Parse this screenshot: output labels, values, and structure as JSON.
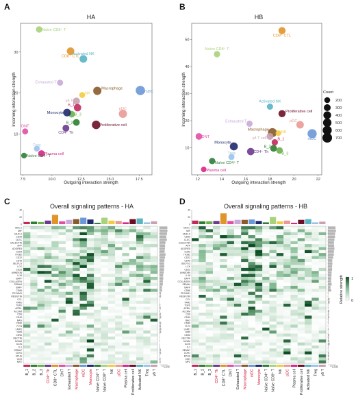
{
  "panels": {
    "A": "A",
    "B": "B",
    "C": "C",
    "D": "D"
  },
  "scatter_axes": {
    "xlabel": "Outgoing interaction strength",
    "ylabel": "Incoming interaction strength"
  },
  "size_legend": {
    "title": "Count",
    "labels": [
      "200",
      "300",
      "400",
      "500",
      "600",
      "700"
    ]
  },
  "heatmap_legend": {
    "title": "Relative strength",
    "ticks": [
      "1",
      "0"
    ]
  },
  "bar_ticks": {
    "C": [
      "40",
      "20",
      "0"
    ],
    "D": [
      "40",
      "20",
      "0"
    ]
  },
  "side_ticks": [
    "0",
    "10",
    "20",
    "30"
  ],
  "signaling_rows": [
    "MHC-I",
    "MIF",
    "MHC-II",
    "CD99",
    "CLEC",
    "GALECTIN",
    "APP",
    "ADGRE5",
    "ICAM",
    "ITGB2",
    "CD22",
    "CD45",
    "SELPLG",
    "LCK",
    "CD23",
    "ANNEXIN",
    "IL16",
    "BAFF",
    "COLLAGEN",
    "SEMA4",
    "BAFF",
    "CD86",
    "PECAM1",
    "RESISTIN",
    "CCL",
    "PARs",
    "TGFb",
    "APRIL",
    "ALCAM",
    "CD6",
    "CD40",
    "BAG",
    "CD80",
    "FLT3",
    "LAIR1",
    "GRN",
    "CD96",
    "NECTIN",
    "NCAM",
    "ICOS",
    "IL1",
    "SEMA7",
    "CDH1",
    "EPHA",
    "CDH",
    "MPZ"
  ],
  "chart_data": [
    {
      "type": "scatter",
      "title": "HA",
      "xlabel": "Outgoing interaction strength",
      "ylabel": "Incoming interaction strength",
      "xlim": [
        7.3,
        18.6
      ],
      "ylim": [
        0,
        37
      ],
      "xticks": [
        "7.5",
        "10.0",
        "12.5",
        "15.0",
        "17.5"
      ],
      "yticks": [
        "10",
        "20",
        "30"
      ],
      "points": [
        {
          "label": "Naïve CD8⁺ T",
          "x": 8.9,
          "y": 35.5,
          "count": 250,
          "color": "#a8d27b"
        },
        {
          "label": "CD8⁺ CTL",
          "x": 11.6,
          "y": 30.2,
          "count": 380,
          "color": "#e0952a"
        },
        {
          "label": "Activated NK",
          "x": 12.7,
          "y": 28.3,
          "count": 390,
          "color": "#5ab4c4"
        },
        {
          "label": "Exhausted T",
          "x": 10.7,
          "y": 22.5,
          "count": 210,
          "color": "#c9a9d9"
        },
        {
          "label": "NK",
          "x": 12.6,
          "y": 19.5,
          "count": 200,
          "color": "#f1cc43"
        },
        {
          "label": "γδ T",
          "x": 12.1,
          "y": 18.0,
          "count": 330,
          "color": "#c9a1b0"
        },
        {
          "label": "Macrophage",
          "x": 13.9,
          "y": 20.5,
          "count": 480,
          "color": "#8a5a2a"
        },
        {
          "label": "mDC",
          "x": 17.6,
          "y": 20.6,
          "count": 640,
          "color": "#6b97d6"
        },
        {
          "label": "B_1",
          "x": 12.2,
          "y": 16.4,
          "count": 360,
          "color": "#c22a5e"
        },
        {
          "label": "B_3",
          "x": 11.7,
          "y": 14.8,
          "count": 280,
          "color": "#6ab04c"
        },
        {
          "label": "Monocyte",
          "x": 11.3,
          "y": 15.2,
          "count": 400,
          "color": "#1f2a6e"
        },
        {
          "label": "B_2",
          "x": 12.1,
          "y": 12.8,
          "count": 290,
          "color": "#2d7e2e"
        },
        {
          "label": "CD4⁺ Th",
          "x": 11.2,
          "y": 11.4,
          "count": 300,
          "color": "#6a3a8e"
        },
        {
          "label": "pDC",
          "x": 16.1,
          "y": 14.9,
          "count": 470,
          "color": "#e99a96"
        },
        {
          "label": "Proliferative cell",
          "x": 13.8,
          "y": 12.2,
          "count": 520,
          "color": "#6b0f26"
        },
        {
          "label": "DNT",
          "x": 7.7,
          "y": 10.6,
          "count": 210,
          "color": "#e04fa3"
        },
        {
          "label": "Treg",
          "x": 8.7,
          "y": 6.4,
          "count": 200,
          "color": "#9bc3ea"
        },
        {
          "label": "Plasma cell",
          "x": 9.1,
          "y": 5.2,
          "count": 270,
          "color": "#d8268a"
        },
        {
          "label": "Naïve CD4⁺ T",
          "x": 7.6,
          "y": 4.7,
          "count": 180,
          "color": "#2f7d3a"
        }
      ]
    },
    {
      "type": "scatter",
      "title": "HB",
      "xlabel": "Outgoing interaction strength",
      "ylabel": "Incoming interaction strength",
      "xlim": [
        11.5,
        22.3
      ],
      "ylim": [
        0,
        56
      ],
      "xticks": [
        "12",
        "14",
        "16",
        "18",
        "20",
        "22"
      ],
      "yticks": [
        "10",
        "20",
        "30",
        "40",
        "50"
      ],
      "points": [
        {
          "label": "CD8⁺ CTL",
          "x": 19.0,
          "y": 53.3,
          "count": 330,
          "color": "#e0952a"
        },
        {
          "label": "Naïve CD8⁺ T",
          "x": 13.6,
          "y": 44.6,
          "count": 240,
          "color": "#a8d27b"
        },
        {
          "label": "Activated NK",
          "x": 18.0,
          "y": 25.2,
          "count": 230,
          "color": "#5ab4c4"
        },
        {
          "label": "Proliferative cell",
          "x": 19.0,
          "y": 22.6,
          "count": 330,
          "color": "#6b0f26"
        },
        {
          "label": "Exhausted T",
          "x": 16.3,
          "y": 18.9,
          "count": 230,
          "color": "#c9a9d9"
        },
        {
          "label": "pDC",
          "x": 20.5,
          "y": 18.5,
          "count": 380,
          "color": "#e99a96"
        },
        {
          "label": "mDC",
          "x": 21.5,
          "y": 15.2,
          "count": 620,
          "color": "#6b97d6"
        },
        {
          "label": "Macrophage",
          "x": 18.2,
          "y": 15.6,
          "count": 600,
          "color": "#8a5a2a"
        },
        {
          "label": "NK",
          "x": 18.7,
          "y": 15.4,
          "count": 180,
          "color": "#f1cc43"
        },
        {
          "label": "γδ T cell",
          "x": 18.0,
          "y": 14.2,
          "count": 300,
          "color": "#c9a1b0"
        },
        {
          "label": "DNT",
          "x": 12.1,
          "y": 14.2,
          "count": 280,
          "color": "#e04fa3"
        },
        {
          "label": "Monocyte",
          "x": 15.0,
          "y": 10.5,
          "count": 440,
          "color": "#1f2a6e"
        },
        {
          "label": "B_1",
          "x": 18.4,
          "y": 12.0,
          "count": 240,
          "color": "#c22a5e"
        },
        {
          "label": "B_2",
          "x": 18.3,
          "y": 9.8,
          "count": 290,
          "color": "#2d7e2e"
        },
        {
          "label": "B_3",
          "x": 18.8,
          "y": 9.0,
          "count": 260,
          "color": "#6ab04c"
        },
        {
          "label": "Treg",
          "x": 14.8,
          "y": 6.6,
          "count": 220,
          "color": "#9bc3ea"
        },
        {
          "label": "CD4⁺ Th",
          "x": 16.4,
          "y": 8.6,
          "count": 350,
          "color": "#6a3a8e"
        },
        {
          "label": "Naïve CD4⁺ T",
          "x": 13.2,
          "y": 5.1,
          "count": 240,
          "color": "#2f7d3a"
        },
        {
          "label": "Plasma cell",
          "x": 12.5,
          "y": 2.0,
          "count": 170,
          "color": "#d8268a"
        }
      ]
    },
    {
      "type": "heatmap",
      "title": "Overall signaling patterns - HA",
      "columns": [
        {
          "label": "B_1",
          "color": "#c22a5e",
          "red": false,
          "bar": 6
        },
        {
          "label": "B_2",
          "color": "#2d7e2e",
          "red": false,
          "bar": 7
        },
        {
          "label": "B_3",
          "color": "#6ab04c",
          "red": false,
          "bar": 6
        },
        {
          "label": "CD4⁺ Th",
          "color": "#6a3a8e",
          "red": true,
          "bar": 10
        },
        {
          "label": "CD8⁺ CTL",
          "color": "#e0952a",
          "red": false,
          "bar": 26
        },
        {
          "label": "DNT",
          "color": "#e04fa3",
          "red": false,
          "bar": 8
        },
        {
          "label": "Exhausted T",
          "color": "#c9a9d9",
          "red": false,
          "bar": 12
        },
        {
          "label": "Macrophage",
          "color": "#8a5a2a",
          "red": true,
          "bar": 14
        },
        {
          "label": "mDC",
          "color": "#6b97d6",
          "red": true,
          "bar": 18
        },
        {
          "label": "Monocyte",
          "color": "#1f2a6e",
          "red": true,
          "bar": 13
        },
        {
          "label": "Naïve CD4⁺ T",
          "color": "#2f7d3a",
          "red": false,
          "bar": 4
        },
        {
          "label": "Naïve CD8⁺ T",
          "color": "#a8d27b",
          "red": false,
          "bar": 18
        },
        {
          "label": "NK",
          "color": "#f1cc43",
          "red": false,
          "bar": 10
        },
        {
          "label": "pDC",
          "color": "#e99a96",
          "red": true,
          "bar": 9
        },
        {
          "label": "Plasma cell",
          "color": "#d8268a",
          "red": false,
          "bar": 5
        },
        {
          "label": "Proliferative cell",
          "color": "#6b0f26",
          "red": false,
          "bar": 14
        },
        {
          "label": "Activated NK",
          "color": "#5ab4c4",
          "red": false,
          "bar": 16
        },
        {
          "label": "Treg",
          "color": "#9bc3ea",
          "red": false,
          "bar": 5
        },
        {
          "label": "γδ T",
          "color": "#c9a1b0",
          "red": false,
          "bar": 8
        }
      ],
      "red_rows": [
        23,
        36,
        37,
        38,
        39,
        40,
        41,
        42,
        43,
        44,
        45
      ]
    },
    {
      "type": "heatmap",
      "title": "Overall signaling patterns - HB",
      "columns": [
        {
          "label": "B_1",
          "color": "#c22a5e",
          "red": false,
          "bar": 10
        },
        {
          "label": "B_2",
          "color": "#2d7e2e",
          "red": false,
          "bar": 8
        },
        {
          "label": "B_3",
          "color": "#6ab04c",
          "red": false,
          "bar": 8
        },
        {
          "label": "CD4⁺ Th",
          "color": "#6a3a8e",
          "red": true,
          "bar": 9
        },
        {
          "label": "CD8⁺ CTL",
          "color": "#e0952a",
          "red": false,
          "bar": 30
        },
        {
          "label": "DNT",
          "color": "#e04fa3",
          "red": false,
          "bar": 9
        },
        {
          "label": "Exhausted T",
          "color": "#c9a9d9",
          "red": false,
          "bar": 12
        },
        {
          "label": "Macrophage",
          "color": "#8a5a2a",
          "red": true,
          "bar": 12
        },
        {
          "label": "mDC",
          "color": "#6b97d6",
          "red": true,
          "bar": 13
        },
        {
          "label": "Monocyte",
          "color": "#1f2a6e",
          "red": true,
          "bar": 9
        },
        {
          "label": "Naïve CD4⁺ T",
          "color": "#2f7d3a",
          "red": false,
          "bar": 5
        },
        {
          "label": "Naïve CD8⁺ T",
          "color": "#a8d27b",
          "red": false,
          "bar": 20
        },
        {
          "label": "NK",
          "color": "#f1cc43",
          "red": false,
          "bar": 8
        },
        {
          "label": "pDC",
          "color": "#e99a96",
          "red": true,
          "bar": 10
        },
        {
          "label": "Plasma cell",
          "color": "#d8268a",
          "red": false,
          "bar": 4
        },
        {
          "label": "Proliferative cell",
          "color": "#6b0f26",
          "red": false,
          "bar": 12
        },
        {
          "label": "Activated NK",
          "color": "#5ab4c4",
          "red": false,
          "bar": 14
        },
        {
          "label": "Treg",
          "color": "#9bc3ea",
          "red": false,
          "bar": 5
        },
        {
          "label": "γδ T",
          "color": "#c9a1b0",
          "red": false,
          "bar": 7
        }
      ],
      "red_rows": []
    }
  ]
}
